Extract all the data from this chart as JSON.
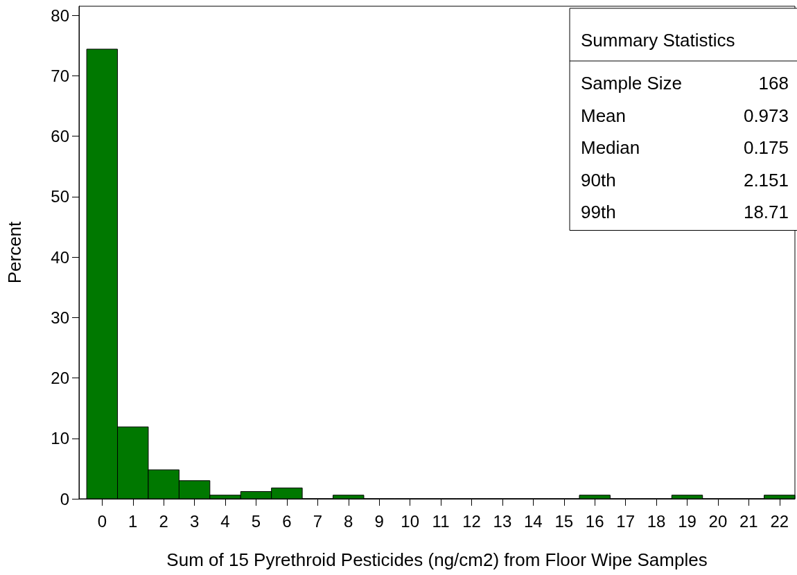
{
  "chart_data": {
    "type": "histogram",
    "xlabel": "Sum of 15 Pyrethroid Pesticides (ng/cm2) from Floor Wipe Samples",
    "ylabel": "Percent",
    "bins": [
      -0.5,
      0.5,
      1.5,
      2.5,
      3.5,
      4.5,
      5.5,
      6.5,
      7.5,
      8.5,
      9.5,
      10.5,
      11.5,
      12.5,
      13.5,
      14.5,
      15.5,
      16.5,
      17.5,
      18.5,
      19.5,
      20.5,
      21.5,
      22.5
    ],
    "values": [
      74.4,
      11.9,
      4.8,
      3.0,
      0.6,
      1.2,
      1.8,
      0,
      0.6,
      0,
      0,
      0,
      0,
      0,
      0,
      0,
      0.6,
      0,
      0,
      0.6,
      0,
      0,
      0.6
    ],
    "color": "#007800",
    "xlim": [
      -0.75,
      22.5
    ],
    "xticks": [
      0,
      1,
      2,
      3,
      4,
      5,
      6,
      7,
      8,
      9,
      10,
      11,
      12,
      13,
      14,
      15,
      16,
      17,
      18,
      19,
      20,
      21,
      22
    ],
    "ylim": [
      0,
      81.5
    ],
    "yticks": [
      0,
      10,
      20,
      30,
      40,
      50,
      60,
      70,
      80
    ],
    "annotations": [
      "Summary Statistics",
      "Sample Size",
      "168",
      "Mean",
      "0.973",
      "Median",
      "0.175",
      "90th",
      "2.151",
      "99th",
      "18.71"
    ]
  }
}
